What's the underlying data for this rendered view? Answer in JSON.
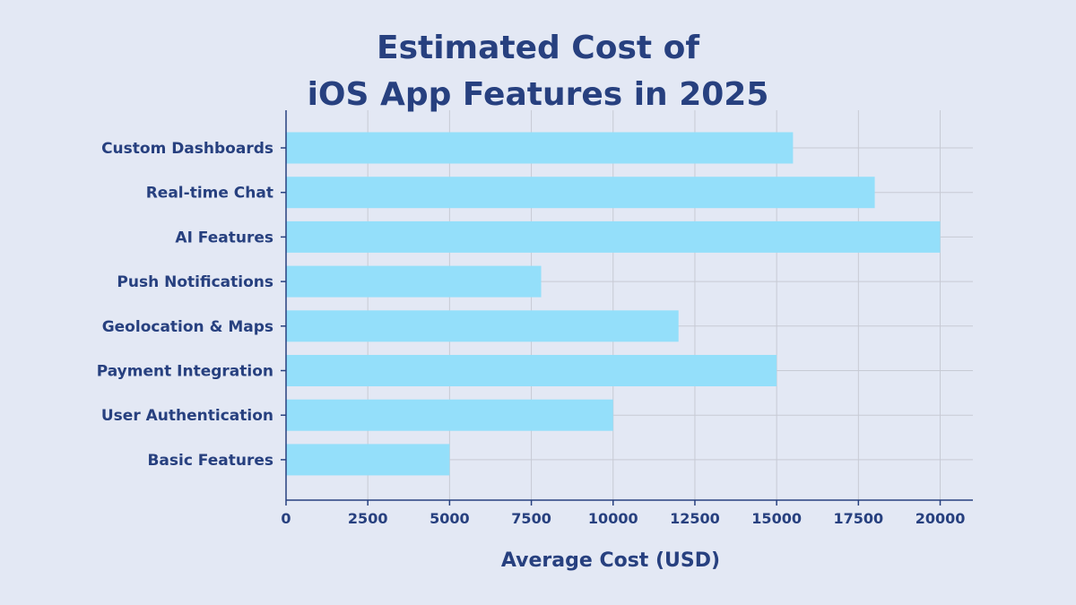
{
  "chart_data": {
    "type": "bar",
    "orientation": "horizontal",
    "title_lines": [
      "Estimated Cost of",
      "iOS App Features in 2025"
    ],
    "xlabel": "Average Cost (USD)",
    "ylabel": "",
    "categories": [
      "Custom Dashboards",
      "Real-time Chat",
      "AI Features",
      "Push Notifications",
      "Geolocation & Maps",
      "Payment Integration",
      "User Authentication",
      "Basic Features"
    ],
    "values": [
      15500,
      18000,
      20000,
      7800,
      12000,
      15000,
      10000,
      5000
    ],
    "xlim": [
      0,
      21000
    ],
    "xticks": [
      0,
      2500,
      5000,
      7500,
      10000,
      12500,
      15000,
      17500,
      20000
    ],
    "grid": true,
    "legend": "none",
    "colors": {
      "background": "#e3e8f4",
      "bar": "#94dffa",
      "text": "#27407f",
      "grid": "#c7cad4"
    }
  }
}
